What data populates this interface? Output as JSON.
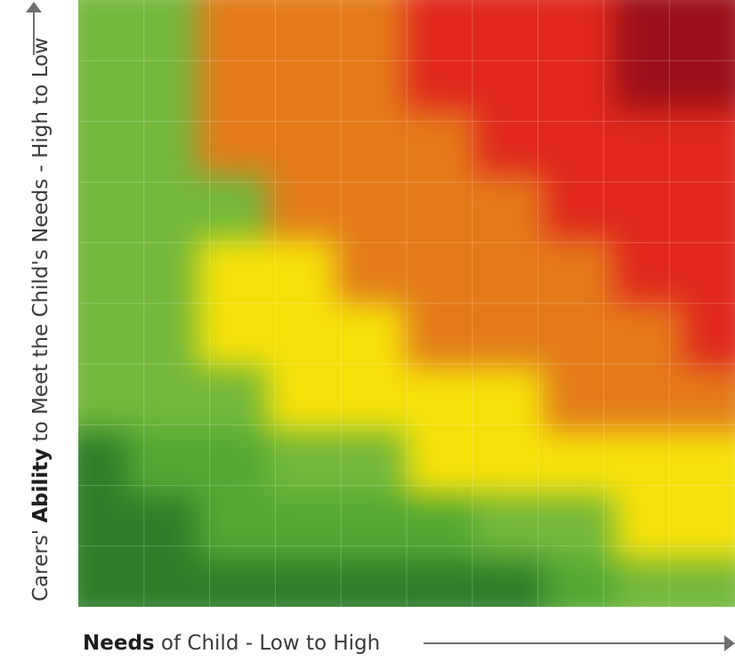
{
  "chart_data": {
    "type": "heatmap",
    "title": "",
    "xlabel_bold": "Needs",
    "xlabel_rest": " of Child - Low to High",
    "ylabel_rest_before": "Carers' ",
    "ylabel_bold": "Ability",
    "ylabel_rest_after": " to Meet the Child's Needs - High to Low",
    "grid": true,
    "cols": 10,
    "rows": 10,
    "risk_palette": [
      "#2f7d2a",
      "#55a832",
      "#72b83a",
      "#f5e10a",
      "#e37a1a",
      "#e1271d",
      "#9b1018"
    ],
    "matrix": [
      [
        2,
        2,
        4,
        4,
        4,
        5,
        5,
        5,
        6,
        6
      ],
      [
        2,
        2,
        4,
        4,
        4,
        5,
        5,
        5,
        6,
        6
      ],
      [
        2,
        2,
        4,
        4,
        4,
        4,
        5,
        5,
        5,
        5
      ],
      [
        2,
        2,
        2,
        4,
        4,
        4,
        4,
        5,
        5,
        5
      ],
      [
        2,
        2,
        3,
        3,
        4,
        4,
        4,
        4,
        5,
        5
      ],
      [
        2,
        2,
        3,
        3,
        3,
        4,
        4,
        4,
        4,
        5
      ],
      [
        2,
        2,
        2,
        3,
        3,
        3,
        3,
        4,
        4,
        4
      ],
      [
        0,
        1,
        1,
        2,
        2,
        3,
        3,
        3,
        3,
        3
      ],
      [
        0,
        0,
        1,
        1,
        1,
        1,
        2,
        2,
        3,
        3
      ],
      [
        0,
        0,
        0,
        0,
        0,
        0,
        0,
        1,
        2,
        2
      ]
    ]
  }
}
